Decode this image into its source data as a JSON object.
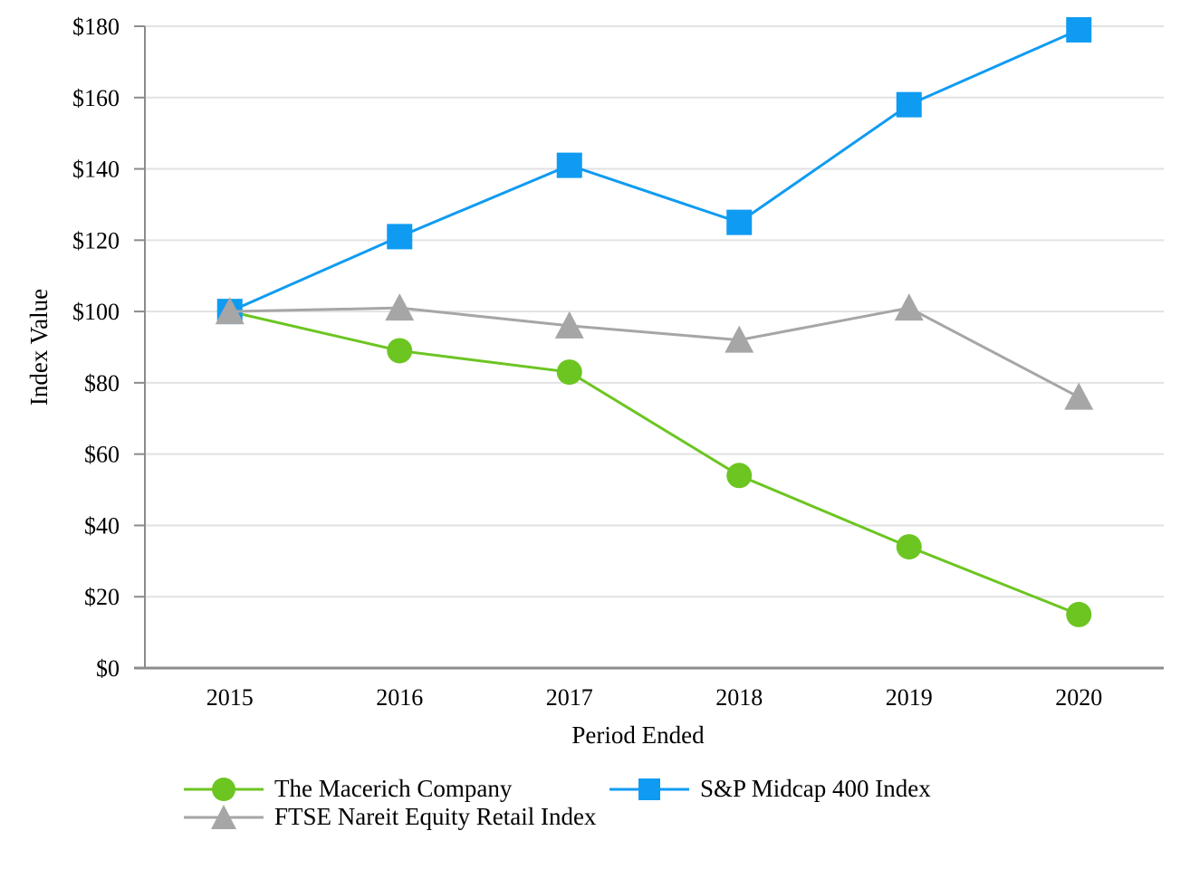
{
  "chart_data": {
    "type": "line",
    "title": "",
    "xlabel": "Period Ended",
    "ylabel": "Index Value",
    "categories": [
      "2015",
      "2016",
      "2017",
      "2018",
      "2019",
      "2020"
    ],
    "series": [
      {
        "name": "The Macerich Company",
        "marker": "circle",
        "color": "#6CC521",
        "values": [
          100,
          89,
          83,
          54,
          34,
          15
        ]
      },
      {
        "name": "S&P Midcap 400 Index",
        "marker": "square",
        "color": "#0F9BF2",
        "values": [
          100,
          121,
          141,
          125,
          158,
          179
        ]
      },
      {
        "name": "FTSE Nareit Equity Retail Index",
        "marker": "triangle",
        "color": "#A6A6A6",
        "values": [
          100,
          101,
          96,
          92,
          101,
          76
        ]
      }
    ],
    "ylim": [
      0,
      180
    ],
    "y_tick_step": 20,
    "y_tick_prefix": "$",
    "grid": true,
    "legend_position": "bottom",
    "axis_color": "#8C8C8C",
    "gridline_color": "#E2E2E2",
    "text_color": "#000000"
  }
}
